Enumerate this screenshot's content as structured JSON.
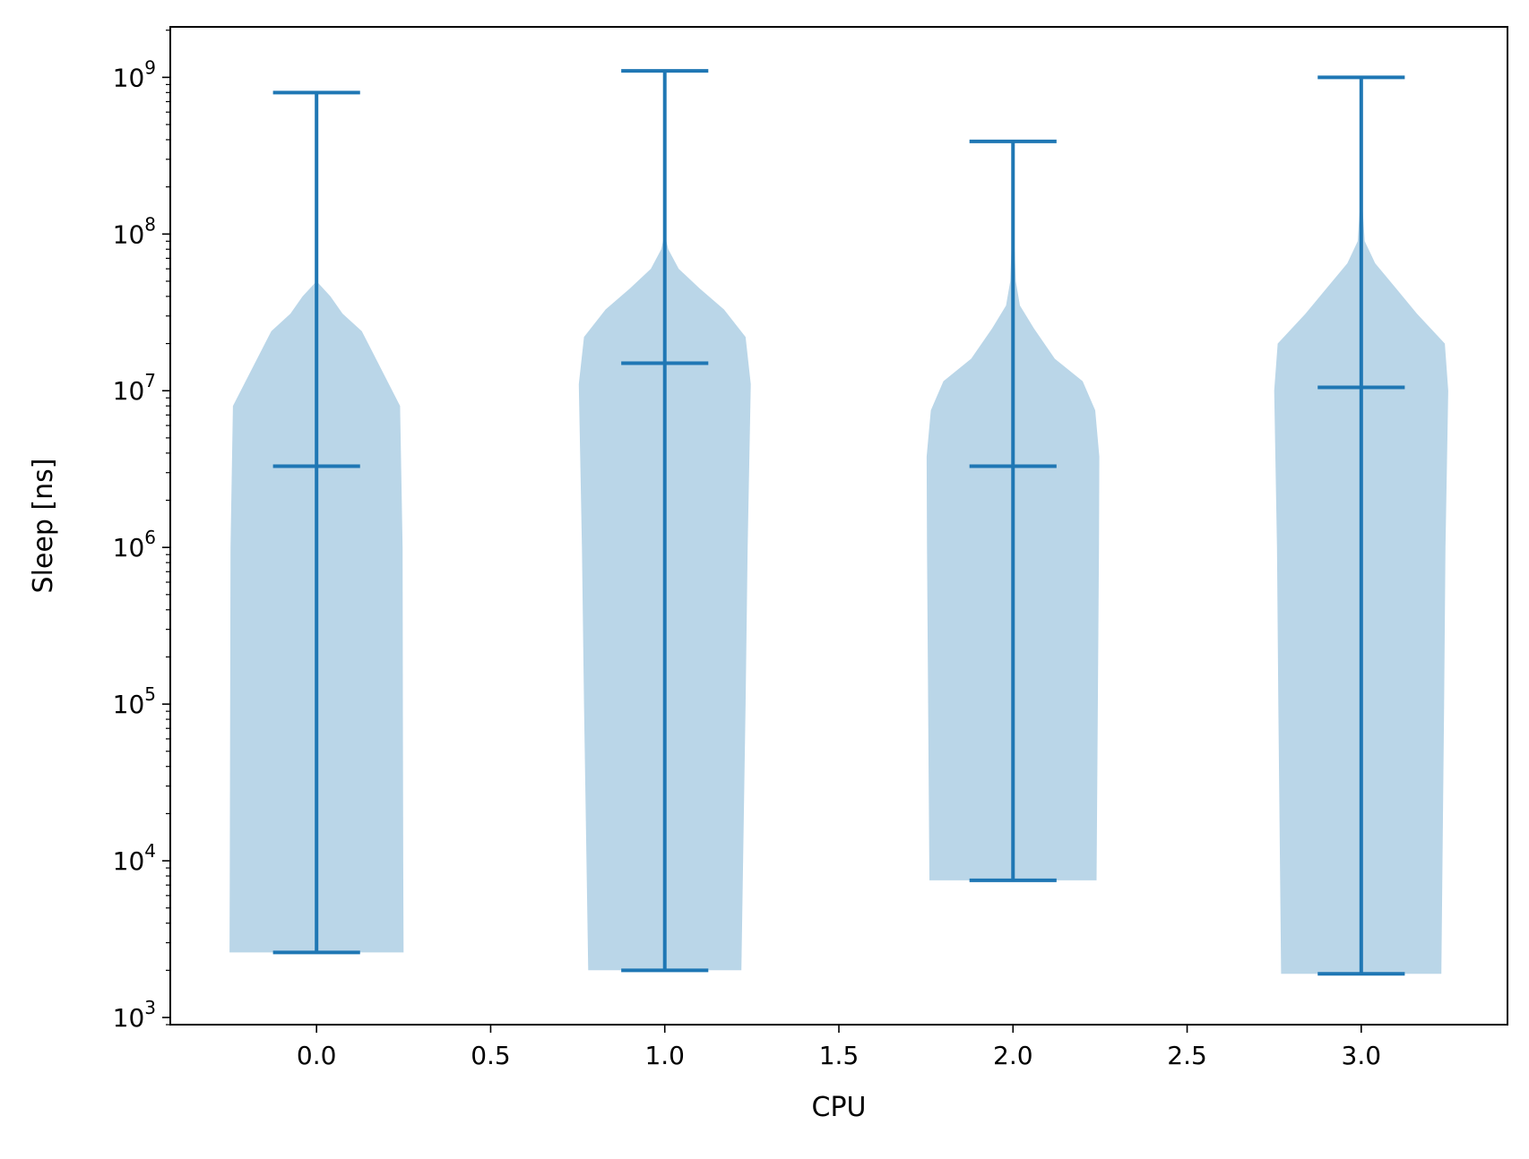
{
  "chart_data": {
    "type": "violin",
    "xlabel": "CPU",
    "ylabel": "Sleep [ns]",
    "y_scale": "log",
    "ylim": [
      900,
      2100000000
    ],
    "xlim": [
      -0.42,
      3.42
    ],
    "x_ticks": [
      {
        "value": 0.0,
        "label": "0.0"
      },
      {
        "value": 0.5,
        "label": "0.5"
      },
      {
        "value": 1.0,
        "label": "1.0"
      },
      {
        "value": 1.5,
        "label": "1.5"
      },
      {
        "value": 2.0,
        "label": "2.0"
      },
      {
        "value": 2.5,
        "label": "2.5"
      },
      {
        "value": 3.0,
        "label": "3.0"
      }
    ],
    "y_ticks": [
      {
        "value": 1000,
        "base": "10",
        "exp": "3"
      },
      {
        "value": 10000,
        "base": "10",
        "exp": "4"
      },
      {
        "value": 100000,
        "base": "10",
        "exp": "5"
      },
      {
        "value": 1000000,
        "base": "10",
        "exp": "6"
      },
      {
        "value": 10000000,
        "base": "10",
        "exp": "7"
      },
      {
        "value": 100000000,
        "base": "10",
        "exp": "8"
      },
      {
        "value": 1000000000,
        "base": "10",
        "exp": "9"
      }
    ],
    "grid": false,
    "colors": {
      "line": "#1f77b4",
      "body": "#bad6e8"
    },
    "violins": [
      {
        "cpu": 0,
        "min": 2600,
        "median": 3300000,
        "max": 800000000,
        "density_profile": [
          [
            2600,
            0.25
          ],
          [
            10000,
            0.249
          ],
          [
            100000,
            0.248
          ],
          [
            1000000,
            0.247
          ],
          [
            8000000,
            0.24
          ],
          [
            24000000,
            0.13
          ],
          [
            31000000,
            0.075
          ],
          [
            40000000,
            0.04
          ],
          [
            50000000,
            0.0
          ]
        ]
      },
      {
        "cpu": 1,
        "min": 2000,
        "median": 15000000,
        "max": 1100000000,
        "density_profile": [
          [
            2000,
            0.22
          ],
          [
            100000,
            0.232
          ],
          [
            1000000,
            0.238
          ],
          [
            11000000,
            0.247
          ],
          [
            22000000,
            0.232
          ],
          [
            33000000,
            0.17
          ],
          [
            45000000,
            0.1
          ],
          [
            60000000,
            0.04
          ],
          [
            80000000,
            0.01
          ],
          [
            100000000,
            0.0
          ]
        ]
      },
      {
        "cpu": 2,
        "min": 7500,
        "median": 3300000,
        "max": 390000000,
        "density_profile": [
          [
            7500,
            0.24
          ],
          [
            1000000,
            0.247
          ],
          [
            3800000,
            0.248
          ],
          [
            7500000,
            0.236
          ],
          [
            11500000,
            0.2
          ],
          [
            16000000,
            0.12
          ],
          [
            25000000,
            0.06
          ],
          [
            35000000,
            0.02
          ],
          [
            50000000,
            0.008
          ],
          [
            150000000,
            0.0
          ]
        ]
      },
      {
        "cpu": 3,
        "min": 1900,
        "median": 10500000,
        "max": 1000000000,
        "density_profile": [
          [
            1900,
            0.23
          ],
          [
            100000,
            0.238
          ],
          [
            1000000,
            0.242
          ],
          [
            10000000,
            0.25
          ],
          [
            20000000,
            0.24
          ],
          [
            31000000,
            0.16
          ],
          [
            45000000,
            0.1
          ],
          [
            65000000,
            0.04
          ],
          [
            90000000,
            0.01
          ],
          [
            200000000,
            0.0
          ]
        ]
      }
    ]
  }
}
